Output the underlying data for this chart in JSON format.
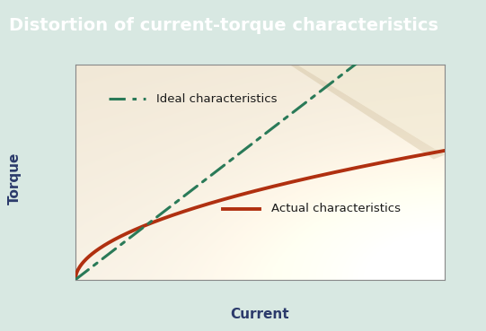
{
  "title": "Distortion of current-torque characteristics",
  "title_bg_color": "#575757",
  "title_text_color": "#ffffff",
  "outer_bg_color": "#d8e8e2",
  "xlabel": "Current",
  "ylabel": "Torque",
  "xlabel_color": "#2b3a6b",
  "ylabel_color": "#2b3a6b",
  "ideal_color": "#2a7a58",
  "actual_color": "#b03010",
  "ideal_label": "Ideal characteristics",
  "actual_label": "Actual characteristics",
  "spine_color": "#888888",
  "label_fontsize": 9.5,
  "axis_label_fontsize": 11,
  "plot_bg_warm": "#ede0c0",
  "plot_bg_light": "#f8f3e8",
  "plot_bg_edge": "#d4b87a"
}
